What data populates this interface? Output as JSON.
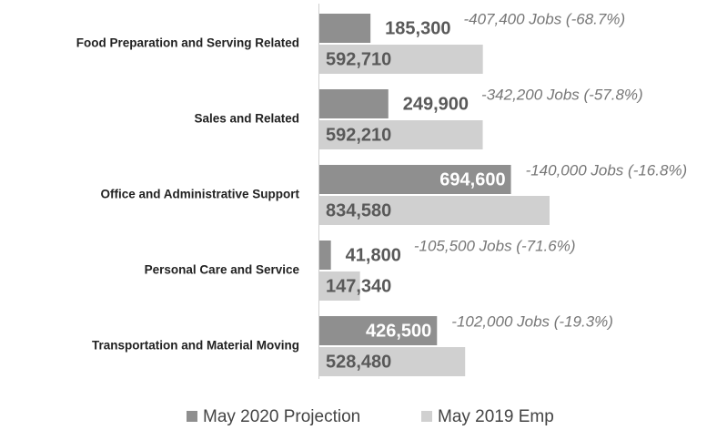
{
  "chart_data": {
    "type": "bar",
    "orientation": "horizontal",
    "categories": [
      "Food Preparation and Serving Related",
      "Sales and Related",
      "Office and Administrative Support",
      "Personal Care and Service",
      "Transportation and Material Moving"
    ],
    "series": [
      {
        "name": "May 2020 Projection",
        "color": "#8f8f8f",
        "values": [
          185300,
          249900,
          694600,
          41800,
          426500
        ],
        "value_labels": [
          "185,300",
          "249,900",
          "694,600",
          "41,800",
          "426,500"
        ]
      },
      {
        "name": "May 2019 Emp",
        "color": "#d0d0d0",
        "values": [
          592710,
          592210,
          834580,
          147340,
          528480
        ],
        "value_labels": [
          "592,710",
          "592,210",
          "834,580",
          "147,340",
          "528,480"
        ]
      }
    ],
    "annotations": [
      "-407,400 Jobs (-68.7%)",
      "-342,200 Jobs (-57.8%)",
      "-140,000 Jobs (-16.8%)",
      "-105,500 Jobs (-71.6%)",
      "-102,000 Jobs (-19.3%)"
    ]
  }
}
